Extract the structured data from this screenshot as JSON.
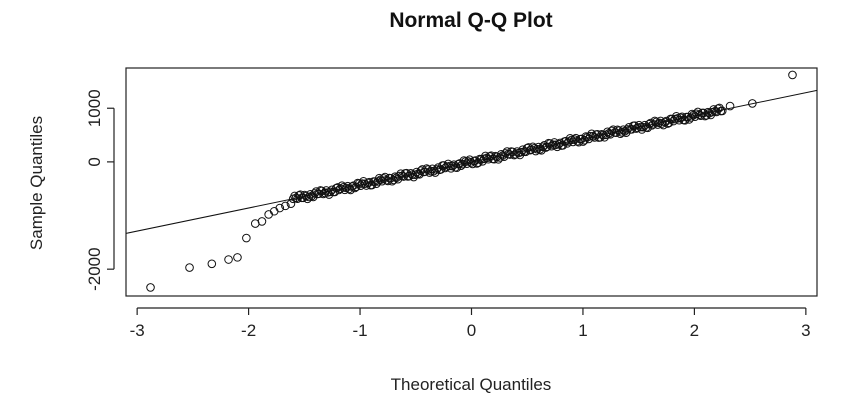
{
  "chart_data": {
    "type": "scatter",
    "title": "Normal Q-Q Plot",
    "xlabel": "Theoretical Quantiles",
    "ylabel": "Sample Quantiles",
    "xlim": [
      -3.1,
      3.1
    ],
    "ylim": [
      -2500,
      1750
    ],
    "x_ticks": [
      -3,
      -2,
      -1,
      0,
      1,
      2,
      3
    ],
    "y_ticks": [
      -2000,
      0,
      1000
    ],
    "y_tick_labels": [
      "-2000",
      "0",
      "1000"
    ],
    "grid": false,
    "reference_line": {
      "intercept": 0,
      "slope": 430
    },
    "outliers": [
      {
        "x": -2.88,
        "y": -2340
      },
      {
        "x": -2.53,
        "y": -1970
      },
      {
        "x": -2.33,
        "y": -1900
      },
      {
        "x": -2.18,
        "y": -1820
      },
      {
        "x": -2.1,
        "y": -1780
      },
      {
        "x": -2.02,
        "y": -1420
      },
      {
        "x": -1.94,
        "y": -1150
      },
      {
        "x": -1.88,
        "y": -1110
      },
      {
        "x": -1.82,
        "y": -980
      },
      {
        "x": -1.77,
        "y": -920
      },
      {
        "x": -1.72,
        "y": -860
      },
      {
        "x": -1.67,
        "y": -820
      },
      {
        "x": -1.62,
        "y": -780
      },
      {
        "x": 2.32,
        "y": 1040
      },
      {
        "x": 2.52,
        "y": 1090
      },
      {
        "x": 2.88,
        "y": 1620
      }
    ],
    "body": {
      "count": 300,
      "x_range": [
        -1.6,
        2.25
      ],
      "slope": 430,
      "intercept": 0
    }
  }
}
